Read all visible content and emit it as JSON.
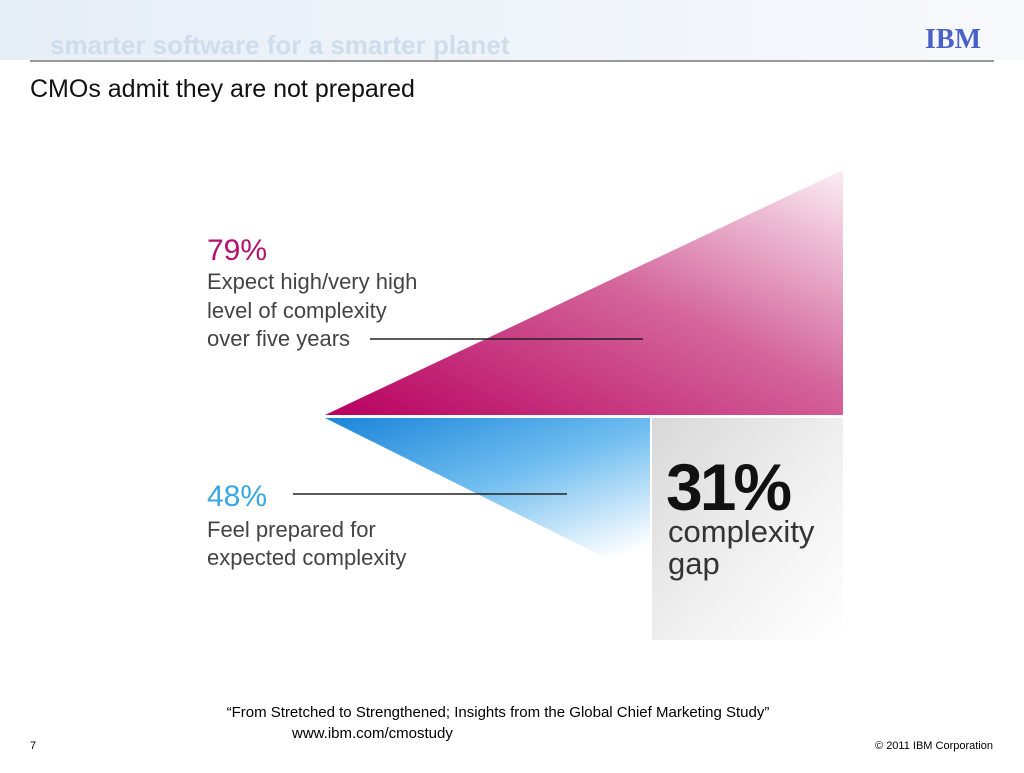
{
  "header": {
    "banner": "smarter software for a smarter planet",
    "logo": "IBM"
  },
  "title": "CMOs admit they are not prepared",
  "infographic": {
    "upper": {
      "figure": "79%",
      "lines": [
        "Expect high/very high",
        "level of complexity",
        "over five years"
      ]
    },
    "lower": {
      "figure": "48%",
      "lines": [
        "Feel prepared for",
        "expected complexity"
      ]
    },
    "gap": {
      "figure": "31%",
      "lines": [
        "complexity",
        "gap"
      ]
    }
  },
  "footer": {
    "source": "“From Stretched to Strengthened; Insights from the Global Chief Marketing Study”",
    "url": "www.ibm.com/cmostudy",
    "page": "7",
    "copyright": "© 2011 IBM Corporation"
  }
}
